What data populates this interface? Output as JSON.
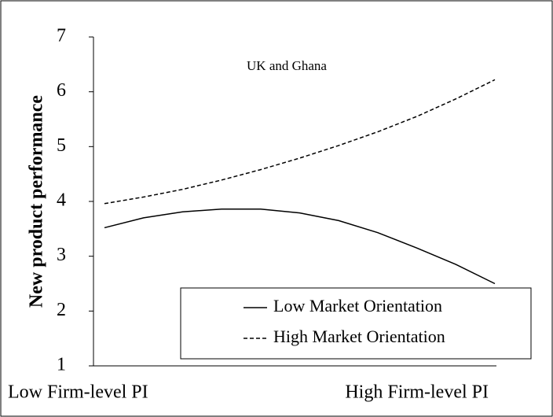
{
  "chart_data": {
    "type": "line",
    "annotation": "UK and Ghana",
    "y_label": "New product performance",
    "categories": [
      "Low Firm-level PI",
      null,
      null,
      null,
      null,
      null,
      null,
      null,
      null,
      null,
      "High Firm-level PI"
    ],
    "series": [
      {
        "name": "Low Market Orientation",
        "color": "#000000",
        "dash": "solid",
        "values": [
          3.52,
          3.7,
          3.81,
          3.86,
          3.86,
          3.79,
          3.65,
          3.43,
          3.15,
          2.85,
          2.5
        ]
      },
      {
        "name": "High Market Orientation",
        "color": "#000000",
        "dash": "dashed",
        "values": [
          3.96,
          4.08,
          4.22,
          4.39,
          4.58,
          4.79,
          5.02,
          5.27,
          5.55,
          5.87,
          6.22
        ]
      }
    ],
    "ylim": [
      1,
      7
    ],
    "yticks": [
      1,
      2,
      3,
      4,
      5,
      6,
      7
    ],
    "grid": false,
    "legend": "lower right"
  }
}
